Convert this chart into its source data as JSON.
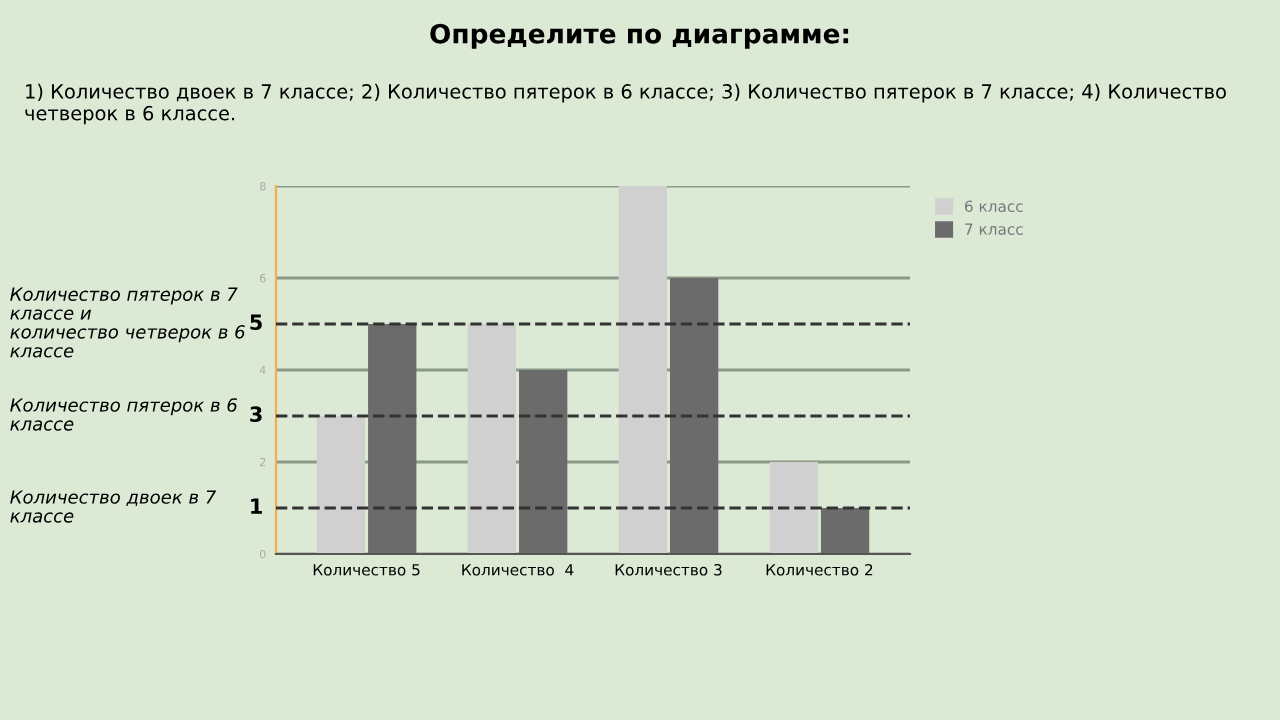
{
  "chart_data": {
    "type": "bar",
    "title": "Определите по диаграмме:",
    "subtitle": "1) Количество двоек в 7 классе; 2) Количество пятерок в 6 классе; 3) Количество пятерок в 7 классе; 4) Количество четверок в 6 классе.",
    "categories": [
      "Количество 5",
      "Количество  4",
      "Количество 3",
      "Количество 2"
    ],
    "series": [
      {
        "name": "6 класс",
        "color": "#d0d0d0",
        "values": [
          3,
          5,
          8,
          2
        ]
      },
      {
        "name": "7 класс",
        "color": "#6b6b6b",
        "values": [
          5,
          4,
          6,
          1
        ]
      }
    ],
    "ylim": [
      0,
      8
    ],
    "yticks": [
      0,
      2,
      4,
      6,
      8
    ],
    "grid": "y",
    "legend": "top right",
    "ref_lines": [
      {
        "axis": "y",
        "value": 5,
        "label": "5",
        "color": "#333333",
        "line_style": "dashed"
      },
      {
        "axis": "y",
        "value": 3,
        "label": "3",
        "color": "#333333",
        "line_style": "dashed"
      },
      {
        "axis": "y",
        "value": 1,
        "label": "1",
        "color": "#333333",
        "line_style": "dashed"
      }
    ],
    "annotations": [
      "Количество пятерок в 7\nклассе и\nколичество четверок в 6\nклассе",
      "Количество пятерок в 6\nклассе",
      "Количество двоек в 7\nклассе"
    ]
  }
}
